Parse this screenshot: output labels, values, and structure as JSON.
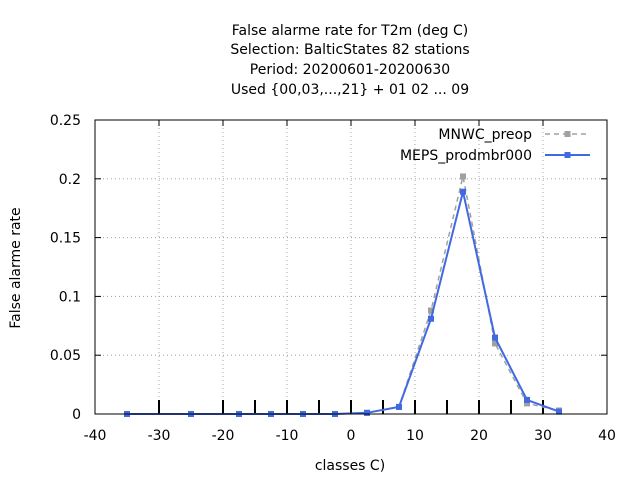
{
  "chart_data": {
    "type": "line",
    "title_lines": [
      "False alarme rate  for T2m (deg C)",
      "Selection: BalticStates     82 stations",
      "Period: 20200601-20200630",
      "Used {00,03,...,21} + 01 02 ... 09"
    ],
    "xlabel": "classes C)",
    "ylabel": "False alarme rate",
    "xlim": [
      -40,
      40
    ],
    "ylim": [
      0,
      0.25
    ],
    "x_ticks": [
      -40,
      -30,
      -20,
      -10,
      0,
      10,
      20,
      30,
      40
    ],
    "x_tick_labels": [
      "-40",
      "-30",
      "-20",
      "-10",
      "0",
      "10",
      "20",
      "30",
      "40"
    ],
    "y_ticks": [
      0,
      0.05,
      0.1,
      0.15,
      0.2,
      0.25
    ],
    "y_tick_labels": [
      "0",
      "0.05",
      "0.1",
      "0.15",
      "0.2",
      "0.25"
    ],
    "grid": true,
    "legend_position": "top-right",
    "class_boundaries": [
      -30,
      -20,
      -15,
      -10,
      -5,
      0,
      5,
      10,
      15,
      20,
      25,
      30
    ],
    "x": [
      -35,
      -25,
      -17.5,
      -12.5,
      -7.5,
      -2.5,
      2.5,
      7.5,
      12.5,
      17.5,
      22.5,
      27.5,
      32.5
    ],
    "series": [
      {
        "name": "MNWC_preop",
        "color": "#a0a0a0",
        "style": "dashed",
        "values": [
          0,
          0,
          0,
          0,
          0,
          0,
          0.001,
          0.006,
          0.088,
          0.202,
          0.06,
          0.009,
          0.003
        ]
      },
      {
        "name": "MEPS_prodmbr000",
        "color": "#4169e1",
        "style": "solid",
        "values": [
          0,
          0,
          0,
          0,
          0,
          0,
          0.001,
          0.006,
          0.081,
          0.189,
          0.065,
          0.012,
          0.002
        ]
      }
    ]
  }
}
